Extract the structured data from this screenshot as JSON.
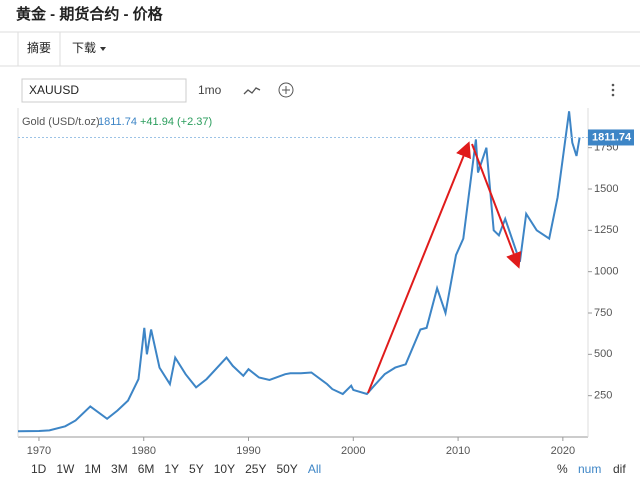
{
  "header": {
    "title": "黄金 - 期货合约 - 价格"
  },
  "tabs": [
    "摘要",
    "下载"
  ],
  "toolbar": {
    "symbol": "XAUUSD",
    "interval": "1mo"
  },
  "quote": {
    "name": "Gold (USD/t.oz)",
    "price": "1811.74",
    "change": "+41.94 (+2.37)"
  },
  "chart_data": {
    "type": "line",
    "x": [
      1968,
      1970,
      1971,
      1972.5,
      1973.5,
      1974.9,
      1976.5,
      1977.5,
      1978.5,
      1979.5,
      1980.05,
      1980.3,
      1980.7,
      1981.5,
      1982.5,
      1983,
      1984,
      1985,
      1986,
      1987.9,
      1988.5,
      1989.5,
      1990,
      1991,
      1992,
      1993.5,
      1994,
      1995,
      1996,
      1997.5,
      1998,
      1999,
      1999.8,
      2000,
      2001.3,
      2002,
      2003,
      2004,
      2005,
      2006.4,
      2007,
      2008,
      2008.8,
      2009.8,
      2010.5,
      2011.7,
      2011.9,
      2012.7,
      2013.4,
      2013.9,
      2014.5,
      2015.9,
      2016.5,
      2017.5,
      2018.7,
      2019.5,
      2020.6,
      2020.9,
      2021.3,
      2021.6
    ],
    "series": [
      {
        "name": "Gold (USD/t.oz)",
        "color": "#3d85c6",
        "values": [
          35,
          36,
          40,
          65,
          100,
          185,
          110,
          160,
          220,
          350,
          660,
          500,
          650,
          420,
          320,
          480,
          380,
          300,
          350,
          480,
          430,
          370,
          410,
          360,
          345,
          380,
          385,
          385,
          390,
          320,
          290,
          260,
          310,
          285,
          260,
          310,
          380,
          420,
          440,
          650,
          660,
          900,
          750,
          1100,
          1200,
          1800,
          1600,
          1750,
          1250,
          1220,
          1320,
          1060,
          1350,
          1250,
          1200,
          1450,
          1970,
          1780,
          1700,
          1811.74
        ]
      }
    ],
    "xlim": [
      1968,
      2022.4
    ],
    "ylim": [
      0,
      1990
    ],
    "xticks": [
      1970,
      1980,
      1990,
      2000,
      2010,
      2020
    ],
    "yticks": [
      250,
      500,
      750,
      1000,
      1250,
      1500,
      1750
    ]
  },
  "ranges": [
    "1D",
    "1W",
    "1M",
    "3M",
    "6M",
    "1Y",
    "5Y",
    "10Y",
    "25Y",
    "50Y",
    "All"
  ],
  "modes": [
    "%",
    "num",
    "dif"
  ]
}
